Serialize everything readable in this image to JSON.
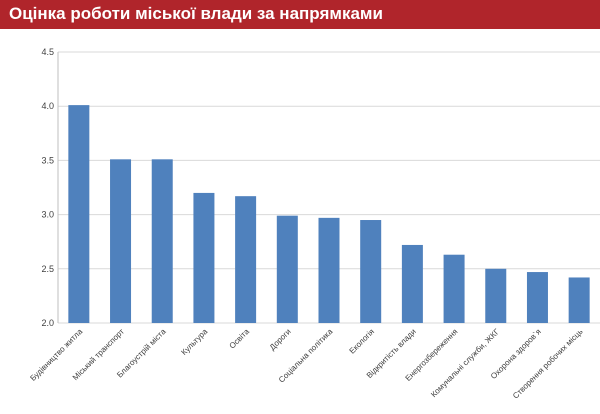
{
  "header": {
    "title": "Оцінка роботи міської влади за напрямками"
  },
  "colors": {
    "header_bg": "#b0252b",
    "bar": "#4f81bd",
    "grid": "#d9d9d9"
  },
  "chart_data": {
    "type": "bar",
    "title": "Оцінка роботи міської влади за напрямками",
    "categories": [
      "Будівництво житла",
      "Міський транспорт",
      "Благоустрій міста",
      "Культура",
      "Освіта",
      "Дороги",
      "Соціальна політика",
      "Екологія",
      "Відкритість влади",
      "Енергозбереження",
      "Комунальні служби, ЖКГ",
      "Охорона здоров`я",
      "Створення робочих місць"
    ],
    "values": [
      4.01,
      3.51,
      3.51,
      3.2,
      3.17,
      2.99,
      2.97,
      2.95,
      2.72,
      2.63,
      2.5,
      2.47,
      2.42
    ],
    "ylim": [
      2.0,
      4.5
    ],
    "yticks": [
      "2.0",
      "2.5",
      "3.0",
      "3.5",
      "4.0",
      "4.5"
    ],
    "grid": true,
    "xlabel": "",
    "ylabel": ""
  }
}
